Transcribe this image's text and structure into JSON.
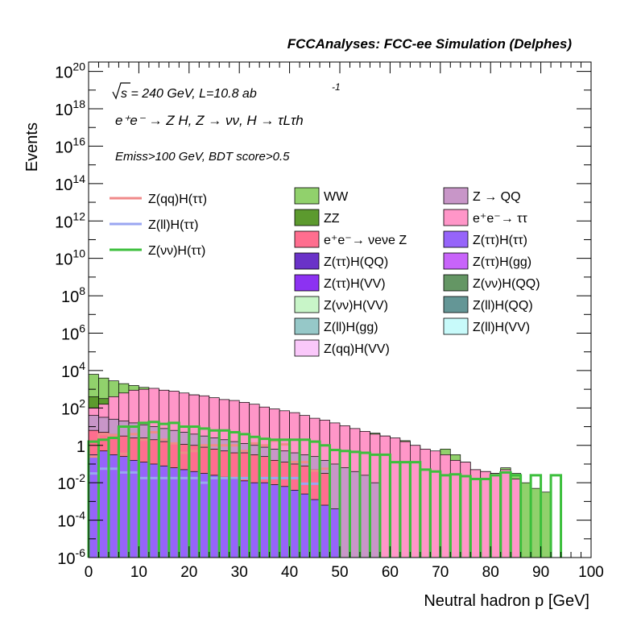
{
  "chart_data": {
    "type": "area",
    "title": "FCCAnalyses: FCC-ee Simulation (Delphes)",
    "xlabel": "Neutral hadron p [GeV]",
    "ylabel": "Events",
    "xlim": [
      0,
      100
    ],
    "ylim_log10": [
      -6,
      20.5
    ],
    "log_y": true,
    "x_ticks": [
      "0",
      "10",
      "20",
      "30",
      "40",
      "50",
      "60",
      "70",
      "80",
      "90",
      "100"
    ],
    "y_ticks": [
      {
        "base": "10",
        "exp": "20"
      },
      {
        "base": "10",
        "exp": "18"
      },
      {
        "base": "10",
        "exp": "16"
      },
      {
        "base": "10",
        "exp": "14"
      },
      {
        "base": "10",
        "exp": "12"
      },
      {
        "base": "10",
        "exp": "10"
      },
      {
        "base": "10",
        "exp": "8"
      },
      {
        "base": "10",
        "exp": "6"
      },
      {
        "base": "10",
        "exp": "4"
      },
      {
        "base": "10",
        "exp": "2"
      },
      {
        "base": "1",
        "exp": ""
      },
      {
        "base": "10",
        "exp": "-2"
      },
      {
        "base": "10",
        "exp": "-4"
      },
      {
        "base": "10",
        "exp": "-6"
      }
    ],
    "annotations": {
      "energy_prefix": "s",
      "energy_rest": " = 240 GeV, L=10.8 ab",
      "energy_exp": "-1",
      "process": "e⁺e⁻ → Z H, Z → νν, H → τLτh",
      "cuts": "Emiss>100 GeV, BDT score>0.5"
    },
    "grid": false,
    "legend_position": "upper-center",
    "bin_width": 2,
    "stack_bottom_to_top": [
      "Z(ll)H(gg)",
      "Z(ll)H(QQ)",
      "Z(ττ)H(QQ)",
      "Z(ττ)H(VV)",
      "Z(ττ)H(ττ)",
      "Z(ττ)H(gg)",
      "Z(νν)H(VV)",
      "Z(qq)H(VV)",
      "Z(ll)H(VV)",
      "Z(νν)H(QQ)",
      "e⁺e⁻→ νeνe Z",
      "Z → QQ",
      "e⁺e⁻→ ττ",
      "ZZ",
      "WW"
    ],
    "stack_top_log10_approx": {
      "WW": [
        3.8,
        3.6,
        3.45,
        3.3,
        3.2,
        3.1,
        3.0,
        2.95,
        2.85,
        2.75,
        2.7,
        2.6,
        2.5,
        2.4,
        2.3,
        2.2,
        2.1,
        2.0,
        1.85,
        1.7,
        1.6,
        1.5,
        1.3,
        1.2,
        1.1,
        1.0,
        0.85,
        0.7,
        0.65,
        0.5,
        0.3,
        0.25,
        0.0,
        -0.3,
        -0.45,
        -0.2,
        -0.5,
        -0.9,
        -1.3,
        -1.8,
        -1.5,
        -1.2,
        -1.5,
        -2.0,
        -2.3,
        -2.5,
        -6,
        -6,
        -6,
        -6
      ],
      "ZZ": [
        2.6,
        2.5,
        2.45,
        2.3,
        2.2,
        2.1,
        2.0,
        1.9,
        1.85,
        1.8,
        1.7,
        1.6,
        1.5,
        1.45,
        1.4,
        1.3,
        1.2,
        1.1,
        1.0,
        0.9,
        0.8,
        0.7,
        0.5,
        0.4,
        0.3,
        0.2,
        0.1,
        -0.2,
        -0.5,
        -0.9,
        -1.4,
        -1.8,
        -0.1,
        -0.6,
        -0.7,
        -0.9,
        -1.0,
        -1.5,
        -2.0,
        -1.4,
        -1.8,
        -2.2,
        -6,
        -6,
        -6,
        -6,
        -6,
        -6,
        -6,
        -6
      ],
      "e⁺e⁻→ ττ": [
        2.0,
        2.2,
        2.6,
        2.8,
        2.95,
        3.0,
        3.05,
        2.95,
        2.9,
        2.8,
        2.7,
        2.65,
        2.55,
        2.45,
        2.4,
        2.3,
        2.2,
        2.05,
        1.95,
        1.85,
        1.75,
        1.6,
        1.45,
        1.35,
        1.2,
        1.05,
        0.9,
        0.75,
        0.6,
        0.5,
        0.4,
        0.2,
        0.0,
        -0.2,
        -0.3,
        -0.5,
        -0.8,
        -0.9,
        -1.3,
        -1.4,
        -1.5,
        -1.3,
        -1.8,
        -6,
        -6,
        -6,
        -6,
        -6,
        -6,
        -6
      ],
      "Z → QQ": [
        1.6,
        1.5,
        1.4,
        1.3,
        1.2,
        1.1,
        1.0,
        0.9,
        0.8,
        0.7,
        0.6,
        0.5,
        0.4,
        0.3,
        0.2,
        0.1,
        0.0,
        -0.1,
        -0.2,
        -0.3,
        -0.4,
        -0.5,
        -0.6,
        -0.8,
        -1.0,
        -1.2,
        -1.4,
        -1.6,
        -2.0,
        -6,
        -6,
        -6,
        -6,
        -6,
        -6,
        -6,
        -6,
        -6,
        -6,
        -6,
        -6,
        -6,
        -6,
        -6,
        -6,
        -6,
        -6,
        -6,
        -6,
        -6
      ],
      "e⁺e⁻→ νeνe Z": [
        0.8,
        0.7,
        0.6,
        0.5,
        0.4,
        0.4,
        0.3,
        0.2,
        0.1,
        0.05,
        0.0,
        -0.1,
        -0.2,
        -0.3,
        -0.4,
        -0.4,
        -0.5,
        -0.6,
        -0.8,
        -0.9,
        -1.0,
        -1.1,
        -1.3,
        -1.5,
        -6,
        -6,
        -6,
        -6,
        -6,
        -6,
        -6,
        -6,
        -6,
        -6,
        -6,
        -6,
        -6,
        -6,
        -6,
        -6,
        -6,
        -6,
        -6,
        -6,
        -6,
        -6,
        -6,
        -6,
        -6,
        -6
      ],
      "Z(ττ)H(ττ)": [
        -0.5,
        -0.3,
        -0.5,
        -0.6,
        -0.8,
        -0.9,
        -1.0,
        -1.1,
        -1.2,
        -1.3,
        -1.4,
        -1.5,
        -1.6,
        -1.7,
        -1.8,
        -1.9,
        -2.0,
        -2.0,
        -2.1,
        -2.2,
        -2.4,
        -2.6,
        -2.9,
        -3.2,
        -3.4,
        -6,
        -6,
        -6,
        -6,
        -6,
        -6,
        -6,
        -6,
        -6,
        -6,
        -6,
        -6,
        -6,
        -6,
        -6,
        -6,
        -6,
        -6,
        -6,
        -6,
        -6,
        -6,
        -6,
        -6,
        -6
      ]
    },
    "series_lines": [
      {
        "name": "Z(qq)H(ττ)",
        "color": "#f08a8a",
        "values_log10": [
          -0.6,
          0.6,
          0.55,
          -0.45,
          0.6,
          0.3,
          0.7,
          0.3,
          0.1,
          -0.4,
          -0.3,
          0.0,
          0.0,
          0.0,
          0.0,
          -0.3,
          0.1,
          0.0,
          0.25,
          0.05,
          -0.9,
          -0.9,
          -1.35,
          -1.25,
          -6,
          -6,
          -6,
          -6,
          -6,
          -6,
          -6,
          -6,
          -6,
          -6,
          -6,
          -6,
          -6,
          -6,
          -6,
          -6,
          -6,
          -6,
          -6,
          -6,
          -6,
          -6,
          -6,
          -6,
          -6,
          -6
        ]
      },
      {
        "name": "Z(ll)H(ττ)",
        "color": "#9aa6f2",
        "values_log10": [
          -1.5,
          -1.25,
          -1.25,
          -1.45,
          -1.45,
          -1.75,
          -1.75,
          -1.75,
          -1.75,
          -1.75,
          -1.75,
          -2.0,
          -1.75,
          -1.75,
          -1.75,
          -1.75,
          -6,
          -1.75,
          -1.75,
          -1.75,
          -1.75,
          -2.05,
          -2.05,
          -6,
          -6,
          -6,
          -6,
          -6,
          -6,
          -6,
          -6,
          -6,
          -6,
          -6,
          -6,
          -6,
          -6,
          -6,
          -6,
          -6,
          -6,
          -6,
          -6,
          -6,
          -6,
          -6,
          -6,
          -6,
          -6,
          -6
        ]
      },
      {
        "name": "Z(νν)H(ττ)",
        "color": "#3cbf3c",
        "values_log10": [
          0.2,
          0.3,
          0.4,
          1.0,
          1.0,
          1.2,
          1.25,
          1.15,
          1.2,
          1.0,
          1.0,
          0.9,
          0.8,
          0.8,
          0.7,
          0.6,
          0.45,
          0.35,
          0.3,
          0.3,
          0.3,
          0.3,
          0.2,
          0.0,
          -0.25,
          -0.3,
          -0.35,
          -0.4,
          -0.5,
          -0.5,
          -0.9,
          -0.9,
          -0.9,
          -1.3,
          -1.4,
          -1.6,
          -1.55,
          -1.65,
          -1.8,
          -1.8,
          -1.6,
          -1.45,
          -1.6,
          -6,
          -1.6,
          -6,
          -1.6,
          -6,
          -6,
          -6
        ]
      }
    ],
    "legend": {
      "lines": [
        {
          "name": "Z(qq)H(ττ)",
          "color": "#f08a8a"
        },
        {
          "name": "Z(ll)H(ττ)",
          "color": "#9aa6f2"
        },
        {
          "name": "Z(νν)H(ττ)",
          "color": "#3cbf3c"
        }
      ],
      "col1": [
        {
          "name": "WW",
          "color": "#91d16c"
        },
        {
          "name": "ZZ",
          "color": "#5c9a2e"
        },
        {
          "name": "e⁺e⁻→ νeνe Z",
          "color": "#ff6e8f"
        },
        {
          "name": "Z(ττ)H(QQ)",
          "color": "#6a32c8"
        },
        {
          "name": "Z(ττ)H(VV)",
          "color": "#8c32f2"
        },
        {
          "name": "Z(νν)H(VV)",
          "color": "#c8f5c8"
        },
        {
          "name": "Z(ll)H(gg)",
          "color": "#96c8c8"
        },
        {
          "name": "Z(qq)H(VV)",
          "color": "#fac8fa"
        }
      ],
      "col2": [
        {
          "name": "Z → QQ",
          "color": "#c896c8"
        },
        {
          "name": "e⁺e⁻→ ττ",
          "color": "#ff96c8"
        },
        {
          "name": "Z(ττ)H(ττ)",
          "color": "#9664fa"
        },
        {
          "name": "Z(ττ)H(gg)",
          "color": "#c864fa"
        },
        {
          "name": "Z(νν)H(QQ)",
          "color": "#649664"
        },
        {
          "name": "Z(ll)H(QQ)",
          "color": "#649696"
        },
        {
          "name": "Z(ll)H(VV)",
          "color": "#c8fafa"
        }
      ]
    }
  }
}
